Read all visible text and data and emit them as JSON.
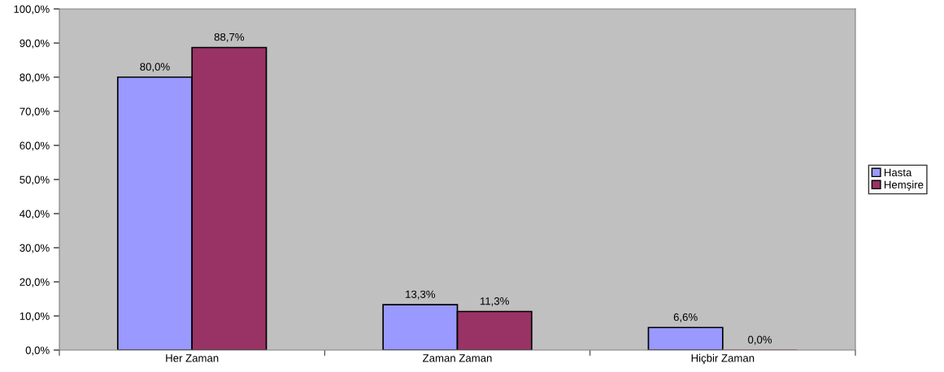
{
  "chart_data": {
    "type": "bar",
    "categories": [
      "Her Zaman",
      "Zaman Zaman",
      "Hiçbir Zaman"
    ],
    "series": [
      {
        "name": "Hasta",
        "color": "#9999ff",
        "values": [
          80.0,
          13.3,
          6.6
        ],
        "value_labels": [
          "80,0%",
          "13,3%",
          "6,6%"
        ]
      },
      {
        "name": "Hemşire",
        "color": "#993366",
        "values": [
          88.7,
          11.3,
          0.0
        ],
        "value_labels": [
          "88,7%",
          "11,3%",
          "0,0%"
        ]
      }
    ],
    "ylim": [
      0,
      100
    ],
    "yticks": [
      {
        "value": 0,
        "label": "0,0%"
      },
      {
        "value": 10,
        "label": "10,0%"
      },
      {
        "value": 20,
        "label": "20,0%"
      },
      {
        "value": 30,
        "label": "30,0%"
      },
      {
        "value": 40,
        "label": "40,0%"
      },
      {
        "value": 50,
        "label": "50,0%"
      },
      {
        "value": 60,
        "label": "60,0%"
      },
      {
        "value": 70,
        "label": "70,0%"
      },
      {
        "value": 80,
        "label": "80,0%"
      },
      {
        "value": 90,
        "label": "90,0%"
      },
      {
        "value": 100,
        "label": "100,0%"
      }
    ],
    "grid": false,
    "legend": "right"
  }
}
